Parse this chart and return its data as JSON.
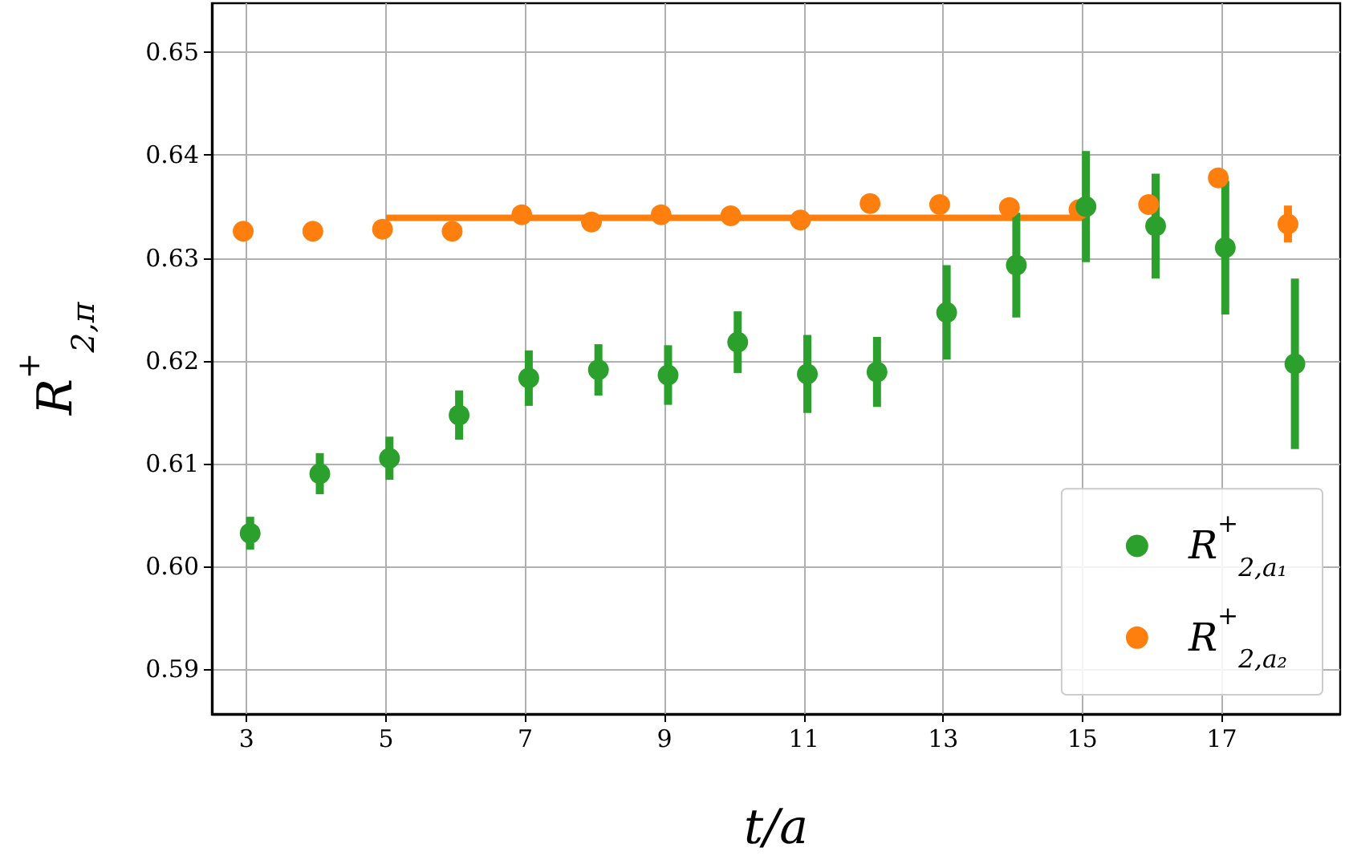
{
  "chart_data": {
    "type": "scatter",
    "xlabel": "t/a",
    "ylabel": "R$^{+}$$_{2,π}$",
    "xlim": [
      2.5,
      18.7
    ],
    "xticks": [
      3,
      5,
      7,
      9,
      11,
      13,
      15,
      17
    ],
    "ylim": [
      0.5856,
      0.6548
    ],
    "yticks": [
      0.59,
      {
        "value": 0.6,
        "label": "0.60"
      },
      0.61,
      0.62,
      0.63,
      0.64,
      0.65
    ],
    "grid": true,
    "legend": "bottom right",
    "marker": "circle",
    "series": [
      {
        "name": "R$^{+}$$_{2,a₁}$",
        "color": "#2ca02c",
        "x": [
          3.05,
          4.05,
          5.05,
          6.05,
          7.05,
          8.05,
          9.05,
          10.05,
          11.05,
          12.05,
          13.05,
          14.05,
          15.05,
          16.05,
          17.05,
          18.05
        ],
        "values": [
          0.6032,
          0.609,
          0.6105,
          0.6147,
          0.6183,
          0.6191,
          0.6186,
          0.6218,
          0.6187,
          0.6189,
          0.6247,
          0.6293,
          0.635,
          0.6331,
          0.631,
          0.6197
        ],
        "errors": [
          0.0016,
          0.002,
          0.0021,
          0.0024,
          0.0027,
          0.0025,
          0.0029,
          0.003,
          0.0038,
          0.0034,
          0.0046,
          0.0051,
          0.0054,
          0.0051,
          0.0065,
          0.0083
        ]
      },
      {
        "name": "R$^{+}$$_{2,a₂}$",
        "color": "#ff7f0e",
        "x": [
          2.95,
          3.95,
          4.95,
          5.95,
          6.95,
          7.95,
          8.95,
          9.95,
          10.95,
          11.95,
          12.95,
          13.95,
          14.95,
          15.95,
          16.95,
          17.95
        ],
        "values": [
          0.6326,
          0.6326,
          0.6328,
          0.6326,
          0.6342,
          0.6335,
          0.6342,
          0.6341,
          0.6337,
          0.6353,
          0.6352,
          0.6349,
          0.6347,
          0.6352,
          0.6378,
          0.6333
        ],
        "errors": [
          null,
          null,
          null,
          null,
          null,
          null,
          null,
          null,
          null,
          null,
          null,
          null,
          null,
          0.0008,
          0.0007,
          0.0018
        ]
      },
      {
        "type": "line",
        "marker": "none",
        "color": "#ff7f0e",
        "x": [
          5,
          15
        ],
        "values": [
          0.6339,
          0.6339
        ]
      }
    ]
  }
}
